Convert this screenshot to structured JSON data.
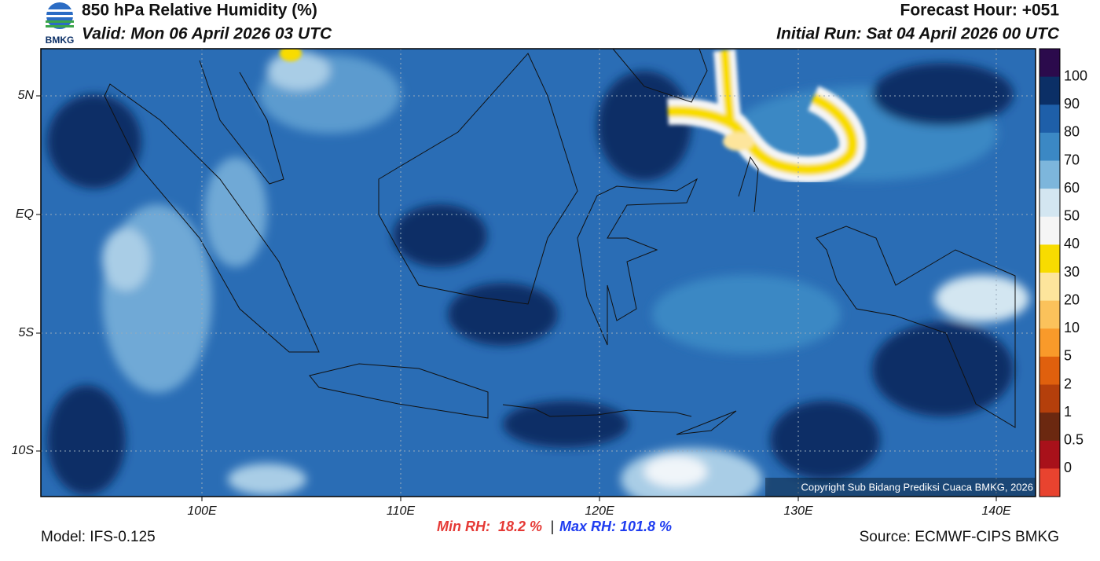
{
  "header": {
    "title": "850 hPa Relative Humidity (%)",
    "valid": "Valid: Mon 06 April 2026 03 UTC",
    "forecast_hour": "Forecast Hour: +051",
    "initial_run": "Initial Run: Sat 04 April 2026 00 UTC",
    "logo_text": "BMKG"
  },
  "map": {
    "lat_labels": [
      "5N",
      "EQ",
      "5S",
      "10S"
    ],
    "lon_labels": [
      "100E",
      "110E",
      "120E",
      "130E",
      "140E"
    ],
    "copyright": "Copyright Sub Bidang Prediksi Cuaca BMKG, 2026"
  },
  "colorbar": {
    "labels": [
      "100",
      "90",
      "80",
      "70",
      "60",
      "50",
      "40",
      "30",
      "20",
      "10",
      "5",
      "2",
      "1",
      "0.5",
      "0"
    ],
    "colors": [
      "#2b0a4c",
      "#0b2f66",
      "#1e5fa9",
      "#3b88c4",
      "#7db6dc",
      "#d3e6f1",
      "#f5f5f5",
      "#f8dc00",
      "#fde59c",
      "#fbc25b",
      "#f99a2a",
      "#e0600d",
      "#b43f0b",
      "#6b2810",
      "#a8111a",
      "#e8432f"
    ]
  },
  "footer": {
    "model": "Model: IFS-0.125",
    "min_rh": "Min RH:  18.2 %",
    "separator": "|",
    "max_rh": "Max RH: 101.8 %",
    "source": "Source: ECMWF-CIPS BMKG"
  }
}
